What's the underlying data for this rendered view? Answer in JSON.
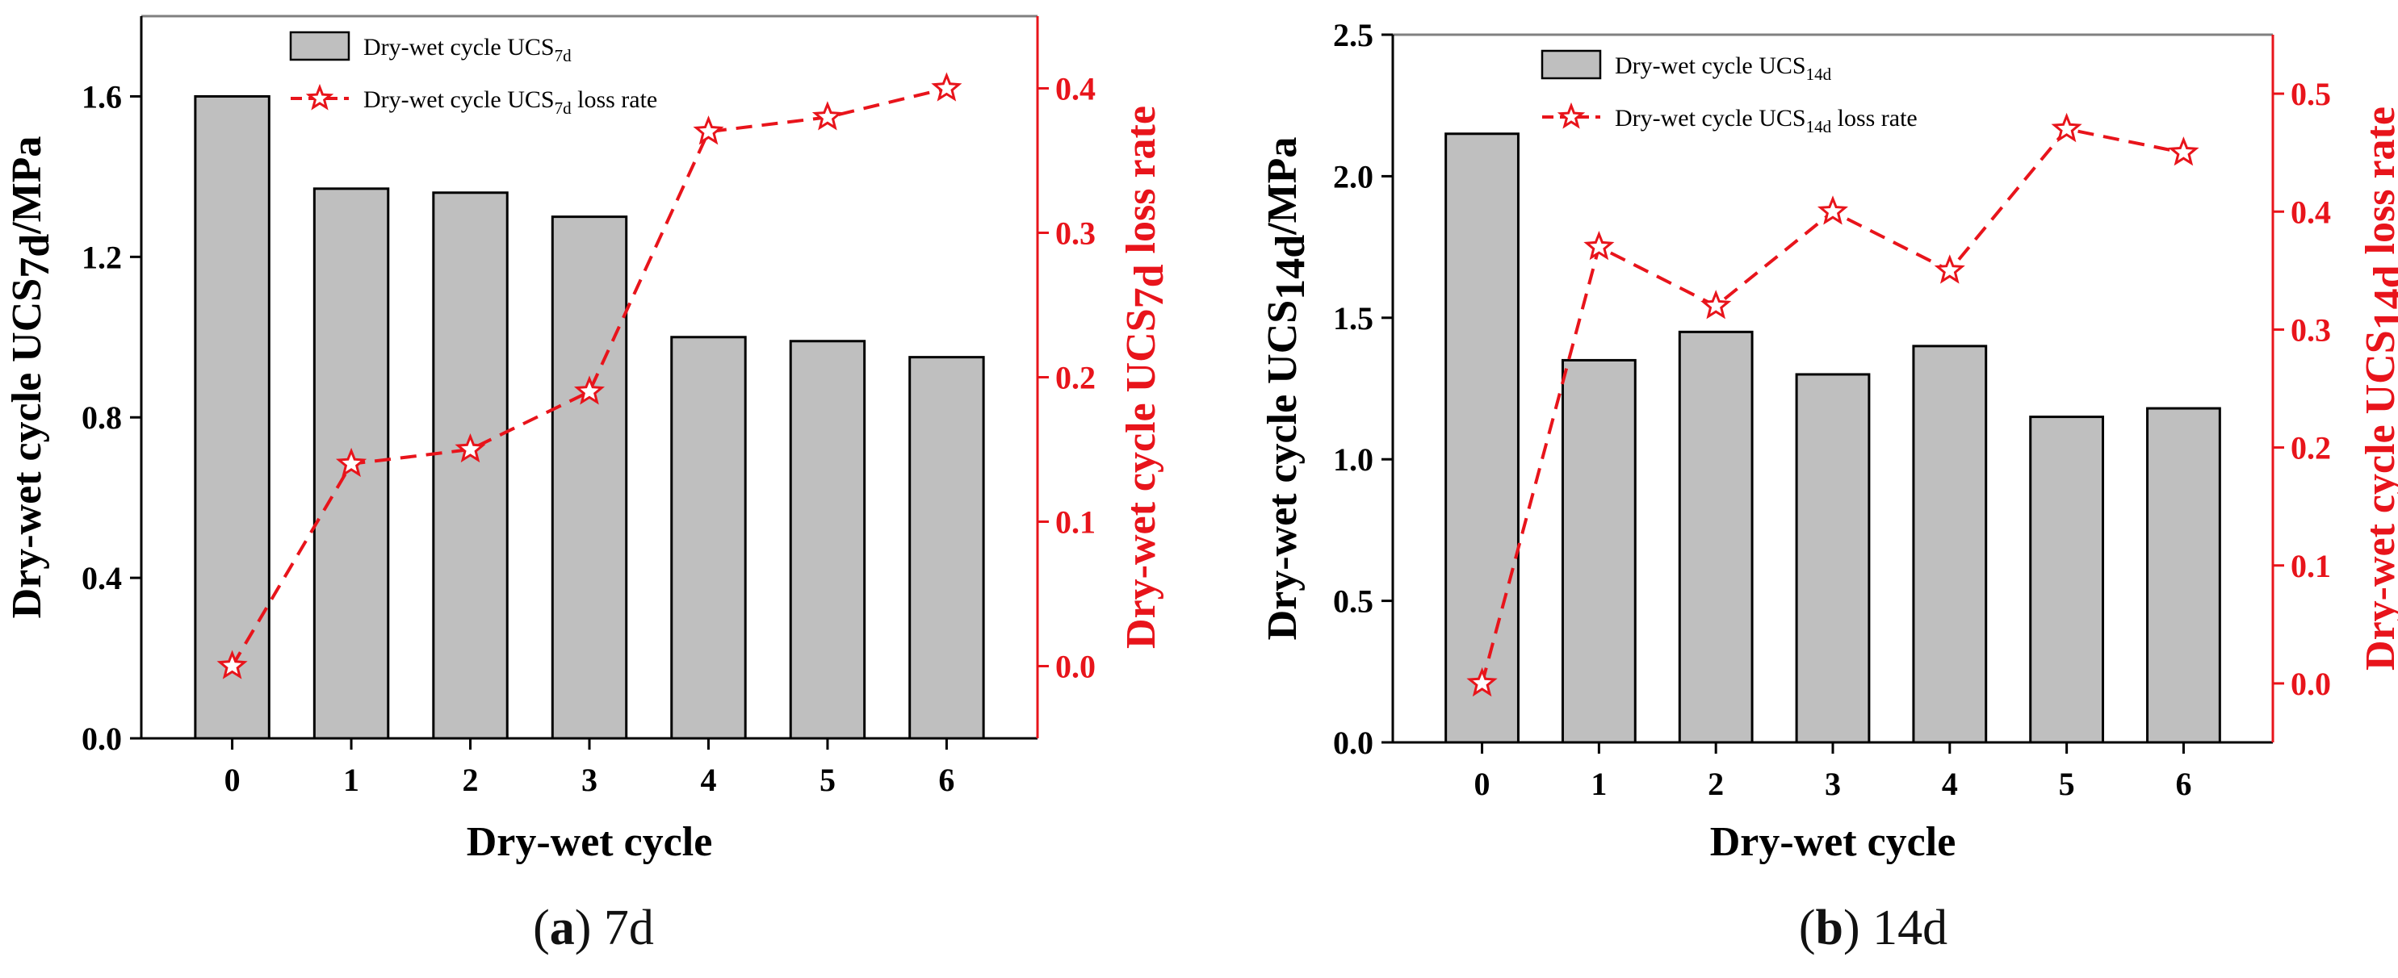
{
  "colors": {
    "bar_fill": "#bfbfbf",
    "bar_stroke": "#000000",
    "line": "#e8141b",
    "axis_right": "#e8141b",
    "frame_top": "#808080"
  },
  "chart_data": [
    {
      "type": "bar+line",
      "caption_letter": "a",
      "caption_text": "7d",
      "xlabel": "Dry-wet cycle",
      "ylabel_main": "Dry-wet cycle  UCS",
      "ylabel_sub": "7d",
      "ylabel_unit": "/MPa",
      "y2label_main": "Dry-wet cycle  UCS",
      "y2label_sub": "7d",
      "y2label_tail": "  loss rate",
      "categories": [
        "0",
        "1",
        "2",
        "3",
        "4",
        "5",
        "6"
      ],
      "series": [
        {
          "name": "Dry-wet cycle  UCS",
          "name_sub": "7d",
          "name_tail": "",
          "kind": "bar",
          "axis": "left",
          "values": [
            1.6,
            1.37,
            1.36,
            1.3,
            1.0,
            0.99,
            0.95
          ]
        },
        {
          "name": "Dry-wet cycle  UCS",
          "name_sub": "7d",
          "name_tail": "  loss rate",
          "kind": "line",
          "axis": "right",
          "marker": "star",
          "values": [
            0.0,
            0.14,
            0.15,
            0.19,
            0.37,
            0.38,
            0.4
          ]
        }
      ],
      "ylim": [
        0,
        1.8
      ],
      "yticks": [
        "0.0",
        "0.4",
        "0.8",
        "1.2",
        "1.6"
      ],
      "y2lim": [
        -0.05,
        0.45
      ],
      "y2ticks": [
        "0.0",
        "0.1",
        "0.2",
        "0.3",
        "0.4"
      ],
      "legend": "top-left"
    },
    {
      "type": "bar+line",
      "caption_letter": "b",
      "caption_text": "14d",
      "xlabel": "Dry-wet cycle",
      "ylabel_main": "Dry-wet cycle  UCS",
      "ylabel_sub": "14d",
      "ylabel_unit": "/MPa",
      "y2label_main": "Dry-wet cycle  UCS",
      "y2label_sub": "14d",
      "y2label_tail": "  loss rate",
      "categories": [
        "0",
        "1",
        "2",
        "3",
        "4",
        "5",
        "6"
      ],
      "series": [
        {
          "name": "Dry-wet cycle  UCS",
          "name_sub": "14d",
          "name_tail": "",
          "kind": "bar",
          "axis": "left",
          "values": [
            2.15,
            1.35,
            1.45,
            1.3,
            1.4,
            1.15,
            1.18
          ]
        },
        {
          "name": "Dry-wet cycle  UCS",
          "name_sub": "14d",
          "name_tail": "  loss rate",
          "kind": "line",
          "axis": "right",
          "marker": "star",
          "values": [
            0.0,
            0.37,
            0.32,
            0.4,
            0.35,
            0.47,
            0.45
          ]
        }
      ],
      "ylim": [
        0,
        2.5
      ],
      "yticks": [
        "0.0",
        "0.5",
        "1.0",
        "1.5",
        "2.0",
        "2.5"
      ],
      "y2lim": [
        -0.05,
        0.55
      ],
      "y2ticks": [
        "0.0",
        "0.1",
        "0.2",
        "0.3",
        "0.4",
        "0.5"
      ],
      "legend": "top-left"
    }
  ]
}
